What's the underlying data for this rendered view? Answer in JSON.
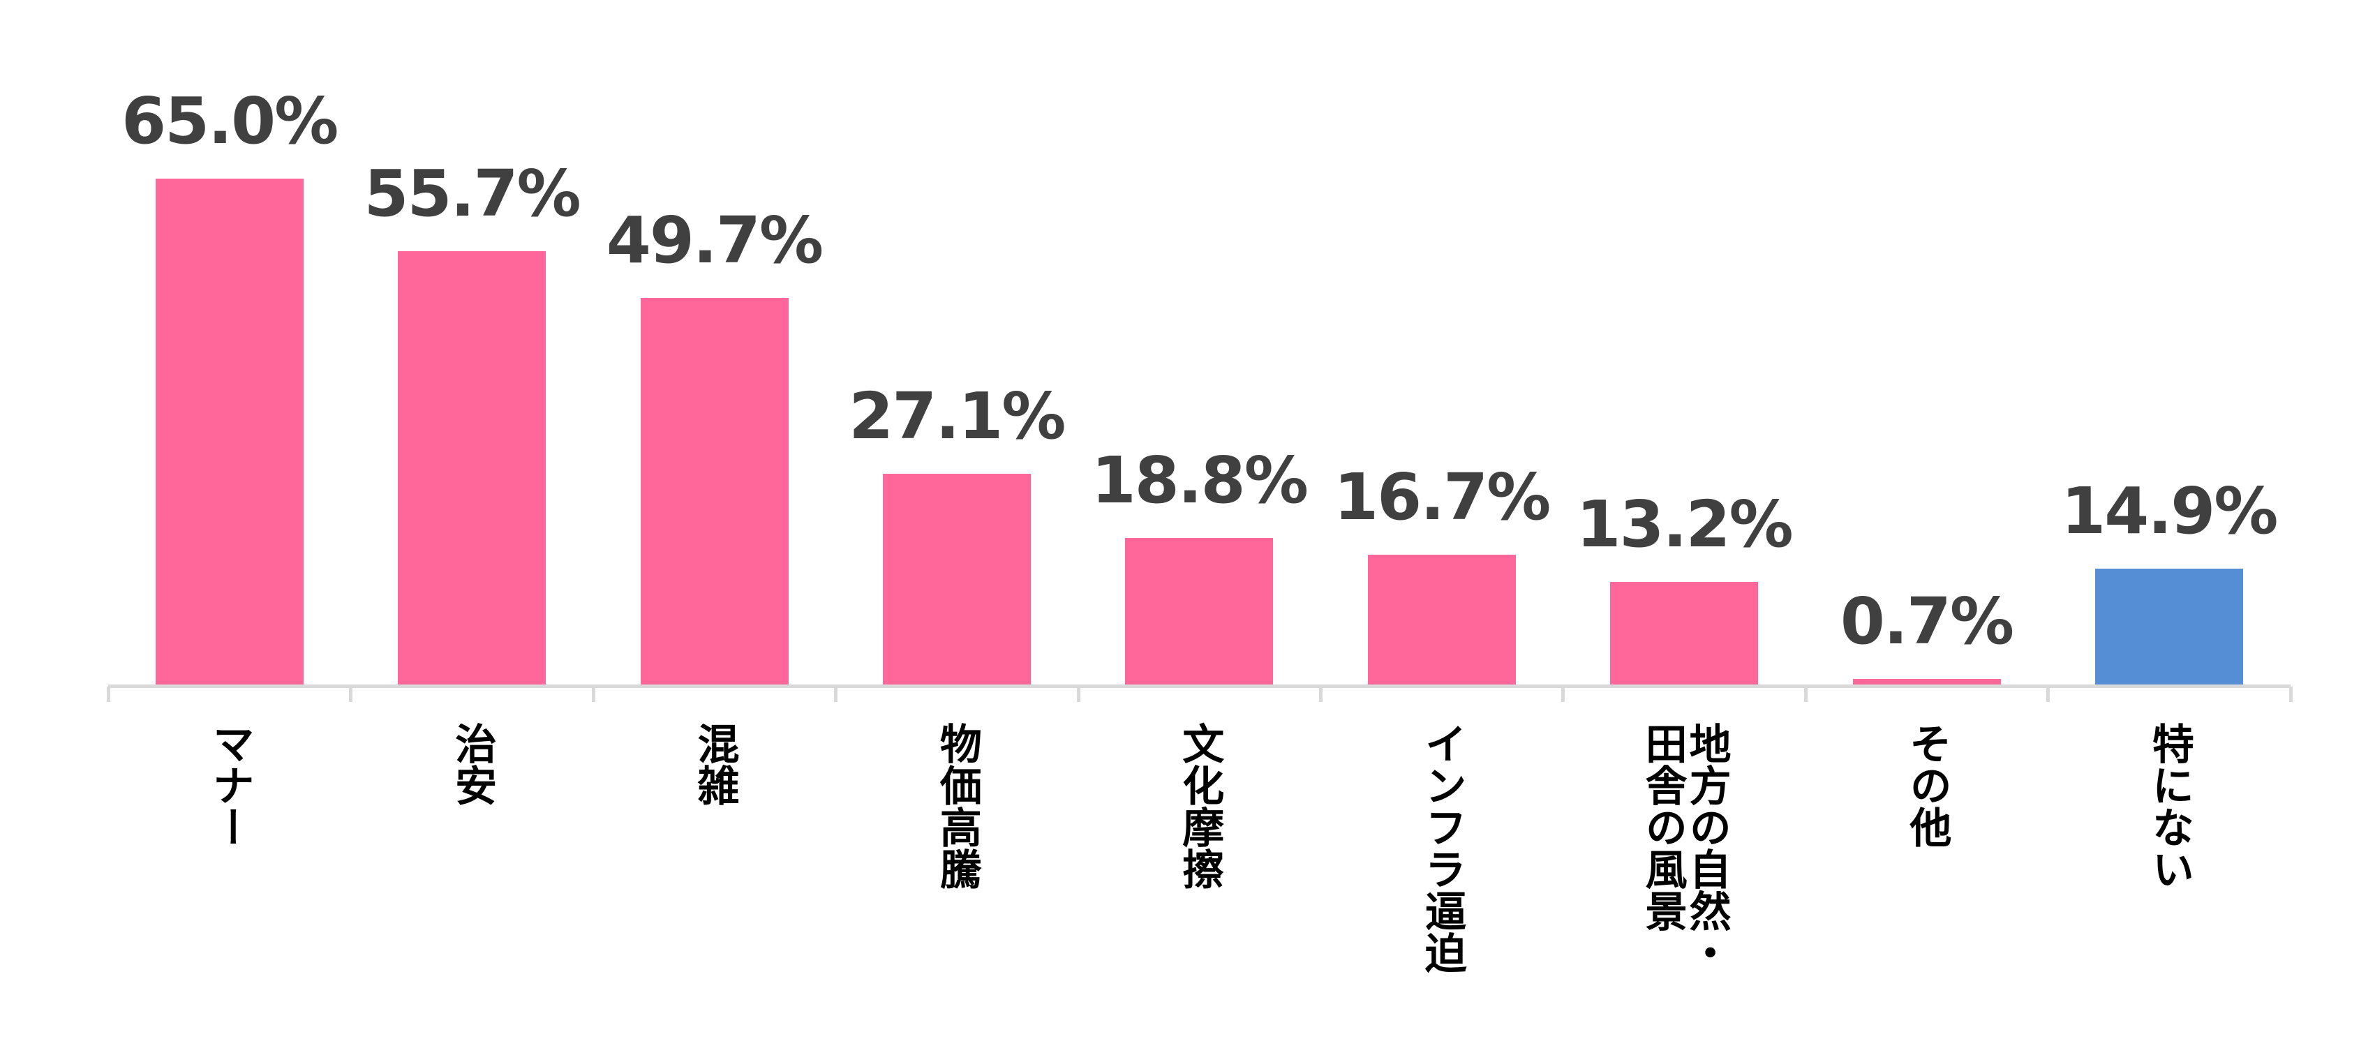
{
  "chart_data": {
    "type": "bar",
    "title": "",
    "xlabel": "",
    "ylabel": "",
    "ylim": [
      0,
      70
    ],
    "grid": false,
    "legend": null,
    "categories": [
      "マナー",
      "治安",
      "混雑",
      "物価高騰",
      "文化摩擦",
      "インフラ逼迫",
      "地方の自然・\n田舎の風景",
      "その他",
      "特にない"
    ],
    "values": [
      65.0,
      55.7,
      49.7,
      27.1,
      18.8,
      16.7,
      13.2,
      0.7,
      14.9
    ],
    "labels": [
      "65.0%",
      "55.7%",
      "49.7%",
      "27.1%",
      "18.8%",
      "16.7%",
      "13.2%",
      "0.7%",
      "14.9%"
    ],
    "colors": [
      "#ff6699",
      "#ff6699",
      "#ff6699",
      "#ff6699",
      "#ff6699",
      "#ff6699",
      "#ff6699",
      "#ff6699",
      "#558ed5"
    ]
  },
  "colors": {
    "bar_primary": "#ff6699",
    "bar_highlight": "#558ed5",
    "label_text": "#404040",
    "axis": "#d9d9d9"
  }
}
